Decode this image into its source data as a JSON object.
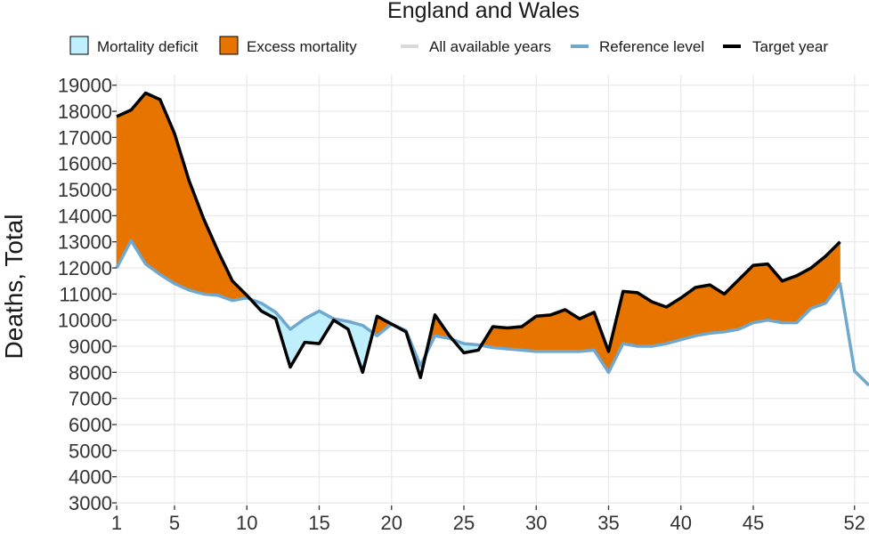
{
  "chart_data": {
    "type": "area",
    "title": "England and Wales",
    "xlabel": "",
    "ylabel": "Deaths, Total",
    "xlim": [
      1,
      53
    ],
    "ylim": [
      3000,
      19300
    ],
    "x_ticks": [
      1,
      5,
      10,
      15,
      20,
      25,
      30,
      35,
      40,
      45,
      52
    ],
    "y_ticks": [
      3000,
      4000,
      5000,
      6000,
      7000,
      8000,
      9000,
      10000,
      11000,
      12000,
      13000,
      14000,
      15000,
      16000,
      17000,
      18000,
      19000
    ],
    "grid": true,
    "legend_position": "top",
    "legend": [
      {
        "label": "Mortality deficit",
        "kind": "fill",
        "color": "#bfeefc"
      },
      {
        "label": "Excess mortality",
        "kind": "fill",
        "color": "#e87400"
      },
      {
        "label": "All available years",
        "kind": "line",
        "color": "#d9d9d9"
      },
      {
        "label": "Reference level",
        "kind": "line",
        "color": "#6fa8cf"
      },
      {
        "label": "Target year",
        "kind": "line",
        "color": "#000000"
      }
    ],
    "colors": {
      "deficit": "#bfeefc",
      "excess": "#e87400",
      "reference": "#6fa8cf",
      "target": "#000000",
      "all_years": "#d9d9d9",
      "grid": "#ebebeb"
    },
    "series": [
      {
        "name": "Reference level",
        "x": [
          1,
          2,
          3,
          4,
          5,
          6,
          7,
          8,
          9,
          10,
          11,
          12,
          13,
          14,
          15,
          16,
          17,
          18,
          19,
          20,
          21,
          22,
          23,
          24,
          25,
          26,
          27,
          28,
          29,
          30,
          31,
          32,
          33,
          34,
          35,
          36,
          37,
          38,
          39,
          40,
          41,
          42,
          43,
          44,
          45,
          46,
          47,
          48,
          49,
          50,
          51,
          52,
          53
        ],
        "values": [
          12000,
          13050,
          12150,
          11750,
          11400,
          11150,
          11000,
          10950,
          10750,
          10850,
          10650,
          10300,
          9650,
          10050,
          10350,
          10050,
          9950,
          9800,
          9400,
          9850,
          9600,
          8250,
          9400,
          9300,
          9100,
          9050,
          8950,
          8900,
          8850,
          8800,
          8800,
          8800,
          8800,
          8850,
          8000,
          9100,
          9000,
          9000,
          9100,
          9250,
          9400,
          9500,
          9550,
          9650,
          9900,
          10000,
          9900,
          9900,
          10450,
          10650,
          11400,
          8050,
          7500
        ]
      },
      {
        "name": "Target year",
        "x": [
          1,
          2,
          3,
          4,
          5,
          6,
          7,
          8,
          9,
          10,
          11,
          12,
          13,
          14,
          15,
          16,
          17,
          18,
          19,
          20,
          21,
          22,
          23,
          24,
          25,
          26,
          27,
          28,
          29,
          30,
          31,
          32,
          33,
          34,
          35,
          36,
          37,
          38,
          39,
          40,
          41,
          42,
          43,
          44,
          45,
          46,
          47,
          48,
          49,
          50,
          51
        ],
        "values": [
          17800,
          18050,
          18700,
          18450,
          17150,
          15350,
          13900,
          12650,
          11500,
          10950,
          10350,
          10050,
          8200,
          9150,
          9100,
          10000,
          9650,
          8000,
          10150,
          9850,
          9550,
          7800,
          10200,
          9400,
          8750,
          8850,
          9750,
          9700,
          9750,
          10150,
          10200,
          10400,
          10050,
          10300,
          8800,
          11100,
          11050,
          10700,
          10500,
          10850,
          11250,
          11350,
          11000,
          11550,
          12100,
          12150,
          11500,
          11700,
          12000,
          12450,
          13000
        ]
      }
    ]
  }
}
